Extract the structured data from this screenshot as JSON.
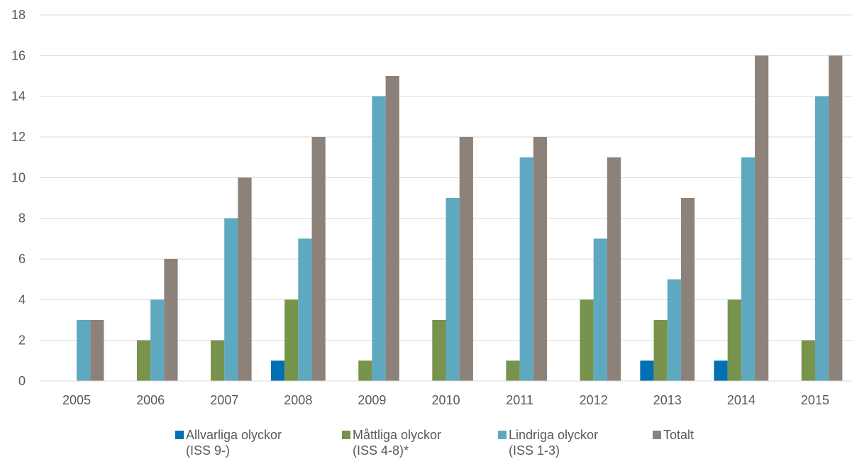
{
  "chart_data": {
    "type": "bar",
    "categories": [
      "2005",
      "2006",
      "2007",
      "2008",
      "2009",
      "2010",
      "2011",
      "2012",
      "2013",
      "2014",
      "2015"
    ],
    "ylim": [
      0,
      18
    ],
    "yticks": [
      0,
      2,
      4,
      6,
      8,
      10,
      12,
      14,
      16,
      18
    ],
    "grid": true,
    "legend_position": "bottom",
    "series": [
      {
        "name": "Allvarliga olyckor (ISS 9-)",
        "label_lines": [
          "Allvarliga olyckor",
          "(ISS 9-)"
        ],
        "color": "#0070b3",
        "values": [
          0,
          0,
          0,
          1,
          0,
          0,
          0,
          0,
          1,
          1,
          0
        ]
      },
      {
        "name": "Måttliga olyckor (ISS 4-8)*",
        "label_lines": [
          "Måttliga olyckor",
          "(ISS 4-8)*"
        ],
        "color": "#77934c",
        "values": [
          0,
          2,
          2,
          4,
          1,
          3,
          1,
          4,
          3,
          4,
          2
        ]
      },
      {
        "name": "Lindriga olyckor (ISS 1-3)",
        "label_lines": [
          "Lindriga olyckor",
          "(ISS 1-3)"
        ],
        "color": "#5fa9c0",
        "values": [
          3,
          4,
          8,
          7,
          14,
          9,
          11,
          7,
          5,
          11,
          14
        ]
      },
      {
        "name": "Totalt",
        "label_lines": [
          "Totalt"
        ],
        "color": "#8c8279",
        "values": [
          3,
          6,
          10,
          12,
          15,
          12,
          12,
          11,
          9,
          16,
          16
        ]
      }
    ]
  }
}
